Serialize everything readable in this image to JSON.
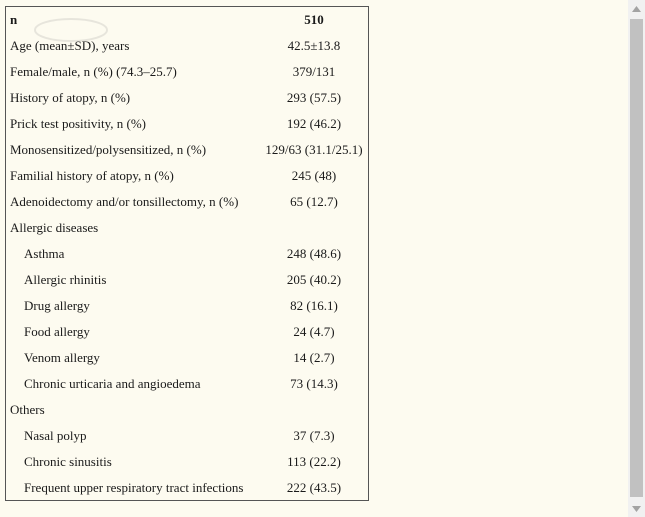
{
  "table": {
    "header": {
      "label": "n",
      "value": "510"
    },
    "rows": [
      {
        "label": "Age (mean±SD), years",
        "value": "42.5±13.8"
      },
      {
        "label": "Female/male, n (%) (74.3–25.7)",
        "value": "379/131"
      },
      {
        "label": "History of atopy, n (%)",
        "value": "293 (57.5)"
      },
      {
        "label": "Prick test positivity, n (%)",
        "value": "192 (46.2)"
      },
      {
        "label": "Monosensitized/polysensitized, n (%)",
        "value": "129/63 (31.1/25.1)"
      },
      {
        "label": "Familial history of atopy, n (%)",
        "value": "245 (48)"
      },
      {
        "label": "Adenoidectomy and/or tonsillectomy, n (%)",
        "value": "65 (12.7)"
      },
      {
        "label": "Allergic diseases",
        "value": ""
      },
      {
        "label": "Asthma",
        "value": "248 (48.6)"
      },
      {
        "label": "Allergic rhinitis",
        "value": "205 (40.2)"
      },
      {
        "label": "Drug allergy",
        "value": "82 (16.1)"
      },
      {
        "label": "Food allergy",
        "value": "24 (4.7)"
      },
      {
        "label": "Venom allergy",
        "value": "14 (2.7)"
      },
      {
        "label": "Chronic urticaria and angioedema",
        "value": "73 (14.3)"
      },
      {
        "label": "Others",
        "value": ""
      },
      {
        "label": "Nasal polyp",
        "value": "37 (7.3)"
      },
      {
        "label": "Chronic sinusitis",
        "value": "113 (22.2)"
      },
      {
        "label": "Frequent upper respiratory tract infections",
        "value": "222 (43.5)"
      }
    ]
  },
  "icons": {
    "scroll_up": "chevron-up-icon",
    "scroll_down": "chevron-down-icon"
  },
  "colors": {
    "background": "#fdfbf0",
    "border": "#555555",
    "scrollbar_track": "#f1f1f1",
    "scrollbar_thumb": "#c1c1c1"
  }
}
